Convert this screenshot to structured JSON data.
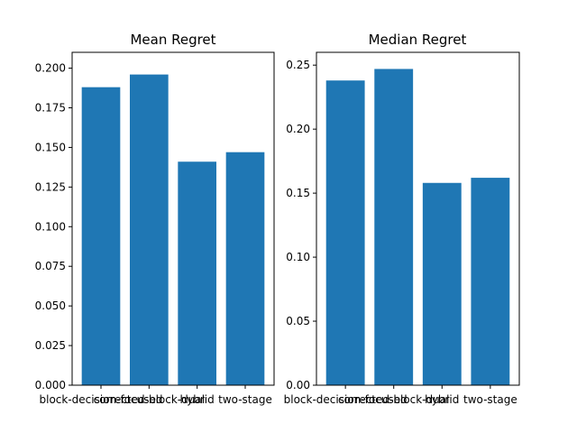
{
  "colors": {
    "bar": "#1f77b4",
    "axis": "#000000",
    "background": "#ffffff"
  },
  "chart_data": [
    {
      "type": "bar",
      "title": "Mean Regret",
      "xlabel": "",
      "ylabel": "",
      "categories": [
        "block-decision-focused",
        "corrected-block-dual",
        "hybrid",
        "two-stage"
      ],
      "values": [
        0.188,
        0.196,
        0.141,
        0.147
      ],
      "ylim": [
        0,
        0.21
      ],
      "yticks": [
        0.0,
        0.025,
        0.05,
        0.075,
        0.1,
        0.125,
        0.15,
        0.175,
        0.2
      ],
      "ytick_labels": [
        "0.000",
        "0.025",
        "0.050",
        "0.075",
        "0.100",
        "0.125",
        "0.150",
        "0.175",
        "0.200"
      ],
      "grid": false,
      "legend": "none"
    },
    {
      "type": "bar",
      "title": "Median Regret",
      "xlabel": "",
      "ylabel": "",
      "categories": [
        "block-decision-focused",
        "corrected-block-dual",
        "hybrid",
        "two-stage"
      ],
      "values": [
        0.238,
        0.247,
        0.158,
        0.162
      ],
      "ylim": [
        0,
        0.26
      ],
      "yticks": [
        0.0,
        0.05,
        0.1,
        0.15,
        0.2,
        0.25
      ],
      "ytick_labels": [
        "0.00",
        "0.05",
        "0.10",
        "0.15",
        "0.20",
        "0.25"
      ],
      "grid": false,
      "legend": "none"
    }
  ]
}
